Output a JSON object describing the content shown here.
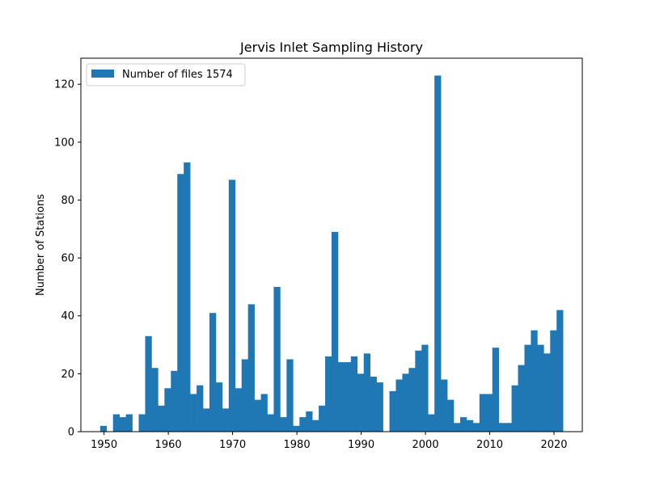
{
  "colors": {
    "bar": "#1f77b4",
    "axes": "#000000",
    "background": "#ffffff"
  },
  "chart_data": {
    "type": "bar",
    "title": "Jervis Inlet Sampling History",
    "xlabel": "",
    "ylabel": "Number of Stations",
    "xlim": [
      1946.4,
      1964.6
    ],
    "xlim_full": [
      1946.4,
      2024.4
    ],
    "ylim": [
      0,
      129
    ],
    "xticks": [
      "1950",
      "1960",
      "1970",
      "1980",
      "1990",
      "2000",
      "2010",
      "2020"
    ],
    "xtick_values": [
      1950,
      1960,
      1970,
      1980,
      1990,
      2000,
      2010,
      2020
    ],
    "yticks": [
      "0",
      "20",
      "40",
      "60",
      "80",
      "100",
      "120"
    ],
    "ytick_values": [
      0,
      20,
      40,
      60,
      80,
      100,
      120
    ],
    "legend": {
      "position": "upper-left",
      "label": "Number of files 1574"
    },
    "grid": false,
    "bin_start": 1949.4,
    "bin_width": 1,
    "values": [
      2,
      0,
      6,
      5,
      6,
      0,
      6,
      33,
      22,
      9,
      15,
      21,
      89,
      93,
      13,
      16,
      8,
      41,
      17,
      8,
      87,
      15,
      25,
      44,
      11,
      13,
      6,
      50,
      5,
      25,
      2,
      5,
      7,
      4,
      9,
      26,
      69,
      24,
      24,
      26,
      20,
      27,
      19,
      17,
      0,
      14,
      18,
      20,
      22,
      28,
      30,
      6,
      123,
      18,
      11,
      3,
      5,
      4,
      3,
      13,
      13,
      29,
      3,
      3,
      16,
      23,
      30,
      35,
      30,
      27,
      35,
      42
    ]
  }
}
